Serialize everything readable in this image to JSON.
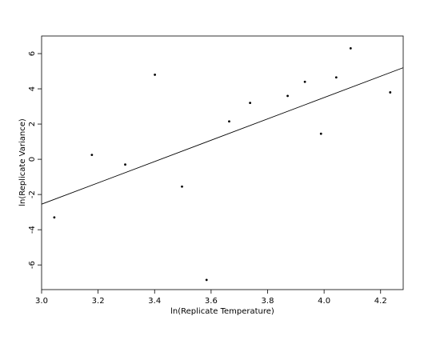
{
  "chart_data": {
    "type": "scatter",
    "title": "",
    "xlabel": "ln(Replicate Temperature)",
    "ylabel": "ln(Replicate Variance)",
    "xlim": [
      3.0,
      4.28
    ],
    "ylim": [
      -7.4,
      7.0
    ],
    "grid": false,
    "xticks": [
      3.0,
      3.2,
      3.4,
      3.6,
      3.8,
      4.0,
      4.2
    ],
    "xtick_labels": [
      "3.0",
      "3.2",
      "3.4",
      "3.6",
      "3.8",
      "4.0",
      "4.2"
    ],
    "yticks": [
      -6,
      -4,
      -2,
      0,
      2,
      4,
      6
    ],
    "ytick_labels": [
      "-6",
      "-4",
      "-2",
      "0",
      "2",
      "4",
      "6"
    ],
    "points": [
      {
        "x": 3.045,
        "y": -3.3
      },
      {
        "x": 3.178,
        "y": 0.25
      },
      {
        "x": 3.296,
        "y": -0.3
      },
      {
        "x": 3.401,
        "y": 4.8
      },
      {
        "x": 3.497,
        "y": -1.55
      },
      {
        "x": 3.584,
        "y": -6.85
      },
      {
        "x": 3.664,
        "y": 2.15
      },
      {
        "x": 3.738,
        "y": 3.2
      },
      {
        "x": 3.871,
        "y": 3.6
      },
      {
        "x": 3.932,
        "y": 4.4
      },
      {
        "x": 3.989,
        "y": 1.45
      },
      {
        "x": 4.043,
        "y": 4.65
      },
      {
        "x": 4.094,
        "y": 6.3
      },
      {
        "x": 4.234,
        "y": 3.8
      }
    ],
    "fit_line": {
      "x": [
        3.0,
        4.28
      ],
      "y": [
        -2.55,
        5.2
      ]
    }
  }
}
